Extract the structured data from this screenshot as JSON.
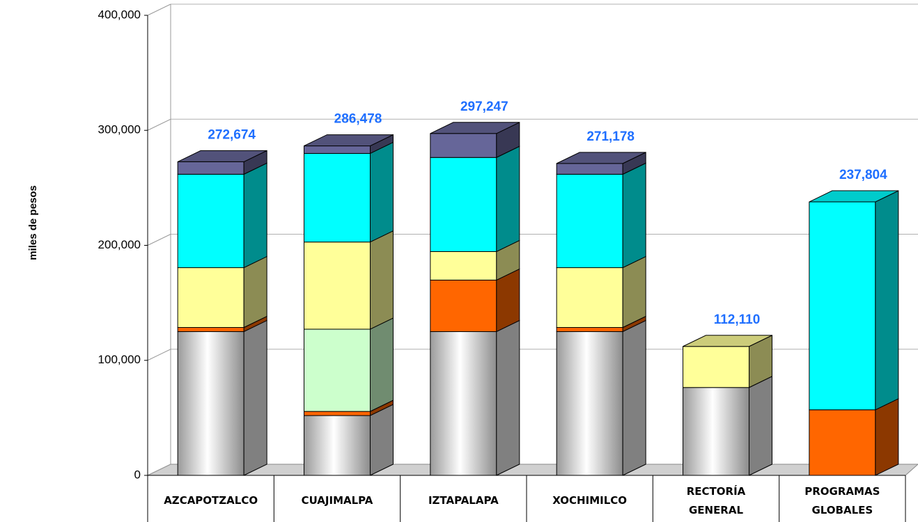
{
  "chart_data": {
    "type": "bar3d_stacked",
    "y_label": "miles de pesos",
    "categories": [
      "AZCAPOTZALCO",
      "CUAJIMALPA",
      "IZTAPALAPA",
      "XOCHIMILCO",
      "RECTORÍA GENERAL",
      "PROGRAMAS GLOBALES"
    ],
    "series": [
      {
        "color": "#ffffff",
        "values": [
          125000,
          52000,
          125000,
          125000,
          76400,
          null
        ]
      },
      {
        "color": "#ff6600",
        "values": [
          3600,
          3600,
          44800,
          3600,
          null,
          57000
        ]
      },
      {
        "color": "#ccffcc",
        "values": [
          null,
          71500,
          null,
          null,
          null,
          null
        ]
      },
      {
        "color": "#ffff99",
        "values": [
          52000,
          75800,
          24800,
          52000,
          35710,
          null
        ]
      },
      {
        "color": "#00ffff",
        "values": [
          81200,
          77000,
          81800,
          81200,
          null,
          180804
        ]
      },
      {
        "color": "#666699",
        "values": [
          10874,
          6578,
          20847,
          9378,
          null,
          null
        ]
      }
    ],
    "totals": [
      272674,
      286478,
      297247,
      271178,
      112110,
      237804
    ],
    "total_labels": [
      "272,674",
      "286,478",
      "297,247",
      "271,178",
      "112,110",
      "237,804"
    ],
    "ylim": [
      0,
      400000
    ],
    "yticks": [
      0,
      {
        "value": 100000,
        "label": "100,000"
      },
      {
        "value": 200000,
        "label": "200,000"
      },
      {
        "value": 300000,
        "label": "300,000"
      },
      {
        "value": 400000,
        "label": "400,000"
      }
    ],
    "grid": true
  }
}
